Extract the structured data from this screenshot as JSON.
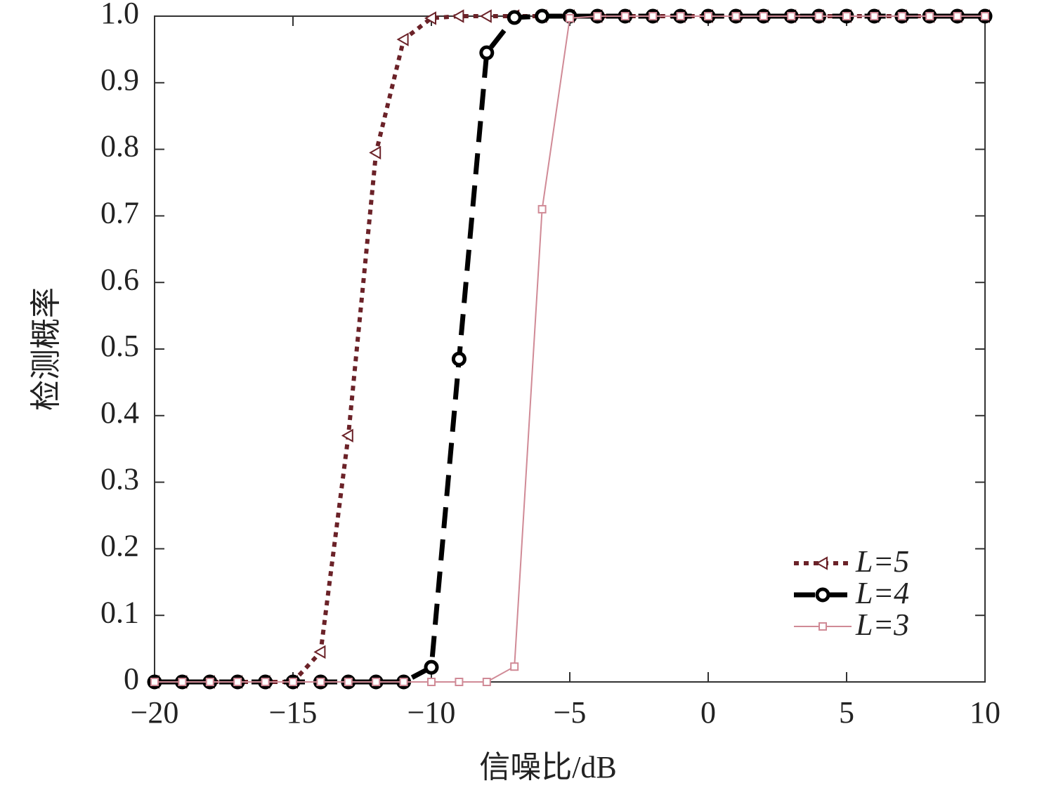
{
  "chart_data": {
    "type": "line",
    "xlabel": "信噪比/dB",
    "ylabel": "检测概率",
    "x": [
      -20,
      -19,
      -18,
      -17,
      -16,
      -15,
      -14,
      -13,
      -12,
      -11,
      -10,
      -9,
      -8,
      -7,
      -6,
      -5,
      -4,
      -3,
      -2,
      -1,
      0,
      1,
      2,
      3,
      4,
      5,
      6,
      7,
      8,
      9,
      10
    ],
    "series": [
      {
        "name": "L=5",
        "color": "#6b2228",
        "linestyle": "dotted",
        "marker": "triangle-left",
        "values": [
          0,
          0,
          0,
          0,
          0,
          0,
          0.045,
          0.37,
          0.795,
          0.965,
          0.997,
          1,
          1,
          1,
          1,
          1,
          1,
          1,
          1,
          1,
          1,
          1,
          1,
          1,
          1,
          1,
          1,
          1,
          1,
          1,
          1
        ]
      },
      {
        "name": "L=4",
        "color": "#000000",
        "linestyle": "dashed",
        "marker": "circle",
        "values": [
          0,
          0,
          0,
          0,
          0,
          0,
          0,
          0,
          0,
          0,
          0.022,
          0.485,
          0.945,
          0.998,
          1,
          1,
          1,
          1,
          1,
          1,
          1,
          1,
          1,
          1,
          1,
          1,
          1,
          1,
          1,
          1,
          1
        ]
      },
      {
        "name": "L=3",
        "color": "#d08a96",
        "linestyle": "solid",
        "marker": "square",
        "values": [
          0,
          0,
          0,
          0,
          0,
          0,
          0,
          0,
          0,
          0,
          0,
          0,
          0,
          0.023,
          0.71,
          0.997,
          1,
          1,
          1,
          1,
          1,
          1,
          1,
          1,
          1,
          1,
          1,
          1,
          1,
          1,
          1
        ]
      }
    ],
    "xlim": [
      -20,
      10
    ],
    "xticks": [
      {
        "value": -20,
        "label": "−20"
      },
      {
        "value": -15,
        "label": "−15"
      },
      {
        "value": -10,
        "label": "−10"
      },
      {
        "value": -5,
        "label": "−5"
      },
      0,
      5,
      10
    ],
    "ylim": [
      0,
      1
    ],
    "yticks": [
      0,
      0.1,
      0.2,
      0.3,
      0.4,
      0.5,
      0.6,
      0.7,
      0.8,
      0.9,
      {
        "value": 1,
        "label": "1.0"
      }
    ],
    "legend": "lower right",
    "grid": false
  }
}
